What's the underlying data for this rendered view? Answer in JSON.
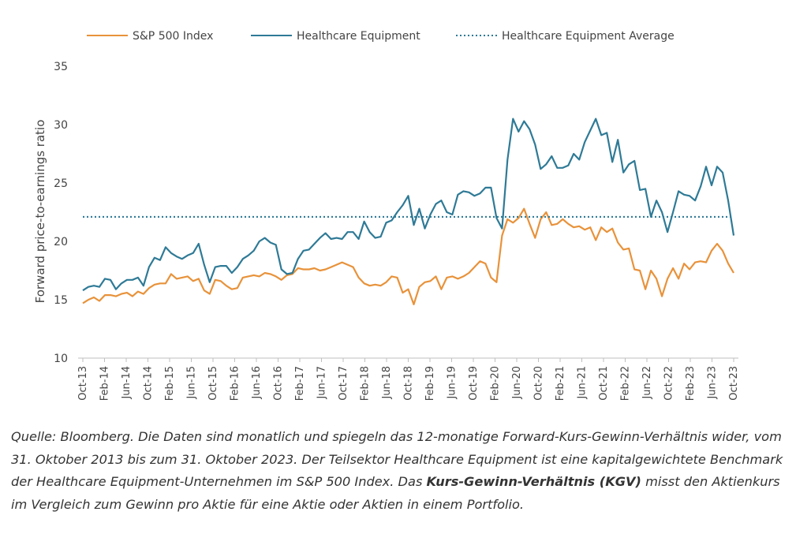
{
  "chart_data": {
    "type": "line",
    "title": "",
    "xlabel": "",
    "ylabel": "Forward price-to-earnings ratio",
    "ylim": [
      10,
      35
    ],
    "yticks": [
      10,
      15,
      20,
      25,
      30,
      35
    ],
    "grid": false,
    "legend_position": "top",
    "x_start": "Oct-13",
    "x_end": "Oct-23",
    "xticks": [
      "Oct-13",
      "Feb-14",
      "Jun-14",
      "Oct-14",
      "Feb-15",
      "Jun-15",
      "Oct-15",
      "Feb-16",
      "Jun-16",
      "Oct-16",
      "Feb-17",
      "Jun-17",
      "Oct-17",
      "Feb-18",
      "Jun-18",
      "Oct-18",
      "Feb-19",
      "Jun-19",
      "Oct-19",
      "Feb-20",
      "Jun-20",
      "Oct-20",
      "Feb-21",
      "Jun-21",
      "Oct-21",
      "Feb-22",
      "Jun-22",
      "Oct-22",
      "Feb-23",
      "Jun-23",
      "Oct-23"
    ],
    "series": [
      {
        "name": "S&P 500 Index",
        "color": "#E8923A",
        "style": "solid",
        "values": [
          14.7,
          15.0,
          15.2,
          14.9,
          15.4,
          15.4,
          15.3,
          15.5,
          15.6,
          15.3,
          15.7,
          15.5,
          16.0,
          16.3,
          16.4,
          16.4,
          17.2,
          16.8,
          16.9,
          17.0,
          16.6,
          16.8,
          15.8,
          15.5,
          16.7,
          16.6,
          16.2,
          15.9,
          16.0,
          16.9,
          17.0,
          17.1,
          17.0,
          17.3,
          17.2,
          17.0,
          16.7,
          17.1,
          17.2,
          17.7,
          17.6,
          17.6,
          17.7,
          17.5,
          17.6,
          17.8,
          18.0,
          18.2,
          18.0,
          17.8,
          16.9,
          16.4,
          16.2,
          16.3,
          16.2,
          16.5,
          17.0,
          16.9,
          15.6,
          15.9,
          14.6,
          16.1,
          16.5,
          16.6,
          17.0,
          15.9,
          16.9,
          17.0,
          16.8,
          17.0,
          17.3,
          17.8,
          18.3,
          18.1,
          16.9,
          16.5,
          20.5,
          21.9,
          21.6,
          22.0,
          22.8,
          21.5,
          20.3,
          21.9,
          22.5,
          21.4,
          21.5,
          21.9,
          21.5,
          21.2,
          21.3,
          21.0,
          21.2,
          20.1,
          21.2,
          20.8,
          21.1,
          19.9,
          19.3,
          19.4,
          17.6,
          17.5,
          15.9,
          17.5,
          16.8,
          15.3,
          16.8,
          17.7,
          16.8,
          18.1,
          17.6,
          18.2,
          18.3,
          18.2,
          19.2,
          19.8,
          19.2,
          18.1,
          17.3
        ]
      },
      {
        "name": "Healthcare Equipment",
        "color": "#2E7A96",
        "style": "solid",
        "values": [
          15.8,
          16.1,
          16.2,
          16.1,
          16.8,
          16.7,
          15.9,
          16.4,
          16.7,
          16.7,
          16.9,
          16.2,
          17.8,
          18.6,
          18.4,
          19.5,
          19.0,
          18.7,
          18.5,
          18.8,
          19.0,
          19.8,
          18.0,
          16.5,
          17.8,
          17.9,
          17.9,
          17.3,
          17.8,
          18.5,
          18.8,
          19.2,
          20.0,
          20.3,
          19.9,
          19.7,
          17.6,
          17.2,
          17.3,
          18.5,
          19.2,
          19.3,
          19.8,
          20.3,
          20.7,
          20.2,
          20.3,
          20.2,
          20.8,
          20.8,
          20.2,
          21.7,
          20.8,
          20.3,
          20.4,
          21.6,
          21.8,
          22.5,
          23.1,
          23.9,
          21.4,
          22.8,
          21.1,
          22.3,
          23.2,
          23.5,
          22.5,
          22.3,
          24.0,
          24.3,
          24.2,
          23.9,
          24.1,
          24.6,
          24.6,
          22.0,
          21.1,
          27.0,
          30.5,
          29.4,
          30.3,
          29.6,
          28.3,
          26.2,
          26.6,
          27.3,
          26.3,
          26.3,
          26.5,
          27.5,
          27.0,
          28.5,
          29.5,
          30.5,
          29.1,
          29.3,
          26.8,
          28.7,
          25.9,
          26.6,
          26.9,
          24.4,
          24.5,
          22.1,
          23.5,
          22.5,
          20.8,
          22.5,
          24.3,
          24.0,
          23.9,
          23.5,
          24.7,
          26.4,
          24.8,
          26.4,
          25.9,
          23.5,
          20.5
        ]
      },
      {
        "name": "Healthcare Equipment Average",
        "color": "#2E7A96",
        "style": "dotted",
        "value": 22.1
      }
    ]
  },
  "caption": {
    "p1": "Quelle: Bloomberg. Die Daten sind monatlich und spiegeln das 12-monatige Forward-Kurs-Gewinn-Verhältnis wider, vom 31. Oktober 2013 bis zum 31. Oktober 2023. Der Teilsektor Healthcare Equipment ist eine kapitalgewichtete Benchmark der Healthcare Equipment-Unternehmen im S&P 500 Index. Das ",
    "bold": "Kurs-Gewinn-Verhältnis (KGV)",
    "p2": " misst den Aktienkurs im Vergleich zum Gewinn pro Aktie für eine Aktie oder Aktien in einem Portfolio."
  }
}
